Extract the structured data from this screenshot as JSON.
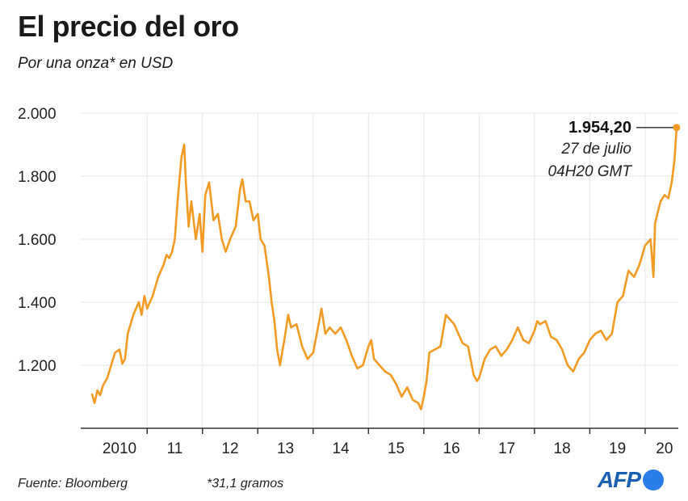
{
  "header": {
    "title": "El precio del oro",
    "subtitle": "Por una onza* en USD"
  },
  "footer": {
    "source": "Fuente: Bloomberg",
    "note": "*31,1 gramos",
    "logo": "AFP"
  },
  "colors": {
    "line": "#f39a23",
    "grid": "#e6e6e6",
    "axis": "#333333"
  },
  "chart_data": {
    "type": "line",
    "title": "El precio del oro",
    "subtitle": "Por una onza* en USD",
    "ylim": [
      1000,
      2000
    ],
    "yticks": [
      1200,
      1400,
      1600,
      1800,
      2000
    ],
    "ytick_labels": [
      "1.200",
      "1.400",
      "1.600",
      "1.800",
      "2.000"
    ],
    "xlim": [
      2009.8,
      2020.6
    ],
    "xtick_labels": [
      {
        "x": 2010.5,
        "label": "2010"
      },
      {
        "x": 2011.5,
        "label": "11"
      },
      {
        "x": 2012.5,
        "label": "12"
      },
      {
        "x": 2013.5,
        "label": "13"
      },
      {
        "x": 2014.5,
        "label": "14"
      },
      {
        "x": 2015.5,
        "label": "15"
      },
      {
        "x": 2016.5,
        "label": "16"
      },
      {
        "x": 2017.5,
        "label": "17"
      },
      {
        "x": 2018.5,
        "label": "18"
      },
      {
        "x": 2019.5,
        "label": "19"
      },
      {
        "x": 2020.35,
        "label": "20"
      }
    ],
    "xgrid": [
      2011,
      2012,
      2013,
      2014,
      2015,
      2016,
      2017,
      2018,
      2019,
      2020
    ],
    "grid": true,
    "series": [
      {
        "x": [
          2010.0,
          2010.05,
          2010.1,
          2010.15,
          2010.2,
          2010.28,
          2010.35,
          2010.42,
          2010.5,
          2010.55,
          2010.6,
          2010.65,
          2010.75,
          2010.85,
          2010.9,
          2010.95,
          2011.0,
          2011.05,
          2011.1,
          2011.2,
          2011.3,
          2011.35,
          2011.4,
          2011.45,
          2011.5,
          2011.55,
          2011.62,
          2011.67,
          2011.7,
          2011.75,
          2011.8,
          2011.88,
          2011.95,
          2012.0,
          2012.05,
          2012.12,
          2012.2,
          2012.28,
          2012.35,
          2012.42,
          2012.5,
          2012.55,
          2012.6,
          2012.68,
          2012.72,
          2012.78,
          2012.85,
          2012.92,
          2013.0,
          2013.05,
          2013.12,
          2013.2,
          2013.25,
          2013.3,
          2013.35,
          2013.4,
          2013.48,
          2013.55,
          2013.6,
          2013.7,
          2013.8,
          2013.9,
          2014.0,
          2014.1,
          2014.15,
          2014.22,
          2014.3,
          2014.4,
          2014.5,
          2014.6,
          2014.7,
          2014.8,
          2014.9,
          2015.0,
          2015.05,
          2015.1,
          2015.2,
          2015.3,
          2015.4,
          2015.5,
          2015.6,
          2015.7,
          2015.8,
          2015.9,
          2015.95,
          2016.0,
          2016.05,
          2016.1,
          2016.2,
          2016.3,
          2016.4,
          2016.5,
          2016.55,
          2016.6,
          2016.7,
          2016.8,
          2016.9,
          2016.96,
          2017.0,
          2017.1,
          2017.2,
          2017.3,
          2017.4,
          2017.5,
          2017.6,
          2017.7,
          2017.8,
          2017.9,
          2018.0,
          2018.05,
          2018.1,
          2018.2,
          2018.3,
          2018.4,
          2018.5,
          2018.6,
          2018.7,
          2018.8,
          2018.9,
          2019.0,
          2019.1,
          2019.2,
          2019.3,
          2019.4,
          2019.5,
          2019.6,
          2019.7,
          2019.8,
          2019.9,
          2020.0,
          2020.1,
          2020.15,
          2020.18,
          2020.22,
          2020.28,
          2020.35,
          2020.42,
          2020.48,
          2020.53,
          2020.57
        ],
        "values": [
          1110,
          1080,
          1120,
          1105,
          1135,
          1160,
          1200,
          1240,
          1250,
          1205,
          1220,
          1300,
          1360,
          1400,
          1360,
          1420,
          1380,
          1400,
          1420,
          1480,
          1520,
          1550,
          1540,
          1560,
          1600,
          1720,
          1860,
          1900,
          1780,
          1640,
          1720,
          1600,
          1680,
          1560,
          1740,
          1780,
          1660,
          1680,
          1600,
          1560,
          1600,
          1620,
          1640,
          1760,
          1790,
          1720,
          1720,
          1660,
          1680,
          1600,
          1580,
          1480,
          1400,
          1340,
          1250,
          1200,
          1280,
          1360,
          1320,
          1330,
          1260,
          1220,
          1240,
          1330,
          1380,
          1300,
          1320,
          1300,
          1320,
          1280,
          1230,
          1190,
          1200,
          1260,
          1280,
          1220,
          1200,
          1180,
          1170,
          1140,
          1100,
          1130,
          1090,
          1080,
          1060,
          1100,
          1150,
          1240,
          1250,
          1260,
          1360,
          1340,
          1330,
          1310,
          1270,
          1260,
          1170,
          1150,
          1160,
          1220,
          1250,
          1260,
          1230,
          1250,
          1280,
          1320,
          1280,
          1270,
          1310,
          1340,
          1330,
          1340,
          1290,
          1280,
          1250,
          1200,
          1180,
          1220,
          1240,
          1280,
          1300,
          1310,
          1280,
          1300,
          1400,
          1420,
          1500,
          1480,
          1520,
          1580,
          1600,
          1480,
          1650,
          1680,
          1720,
          1740,
          1730,
          1780,
          1850,
          1954.2
        ]
      }
    ],
    "annotation": {
      "value": "1.954,20",
      "date": "27 de julio",
      "time": "04H20 GMT",
      "x": 2020.57,
      "y": 1954.2
    }
  }
}
